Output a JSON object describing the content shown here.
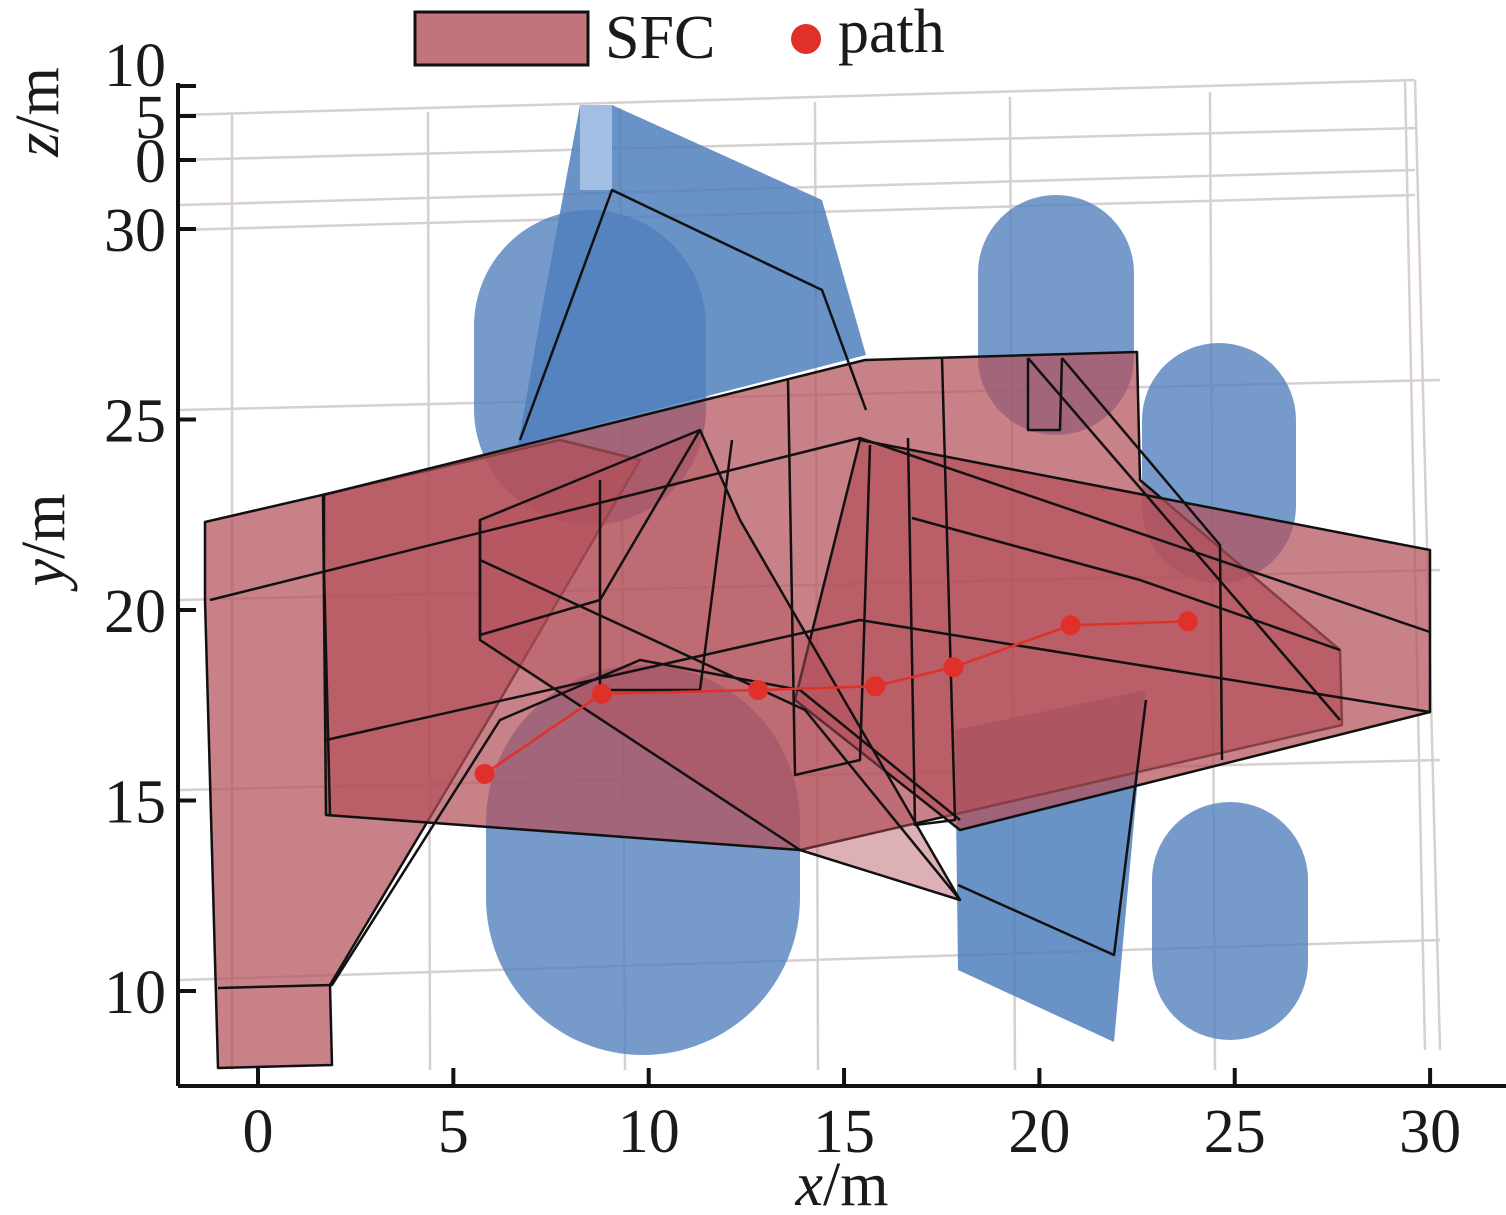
{
  "chart_data": {
    "type": "scatter",
    "legend": [
      {
        "label": "SFC",
        "color": "#b4505a"
      },
      {
        "label": "path",
        "color": "#e0302a"
      }
    ],
    "legend_placement": "top-center",
    "xlabel": {
      "var": "x",
      "unit": "/m"
    },
    "ylabel": {
      "var": "y",
      "unit": "/m"
    },
    "zlabel": {
      "var": "z",
      "unit": "/m"
    },
    "x_ticks": [
      "0",
      "5",
      "10",
      "15",
      "20",
      "25",
      "30"
    ],
    "y_ticks": [
      "10",
      "15",
      "20",
      "25",
      "30"
    ],
    "z_ticks": [
      "10",
      "5",
      "0"
    ],
    "xlim": [
      -2,
      31
    ],
    "ylim": [
      7.5,
      33
    ],
    "grid": true,
    "series": [
      {
        "name": "path",
        "x": [
          5.8,
          8.8,
          12.8,
          15.8,
          17.8,
          20.8,
          23.8
        ],
        "y": [
          15.7,
          17.8,
          17.9,
          18.0,
          18.5,
          19.6,
          19.7
        ]
      }
    ],
    "colors": {
      "sfc_fill": "#b4505a",
      "obstacle_fill": "#4f7fbd",
      "path": "#e0302a",
      "grid": "#d6cfcf"
    }
  }
}
